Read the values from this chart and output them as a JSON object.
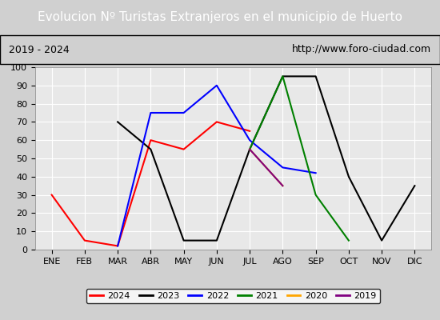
{
  "title": "Evolucion Nº Turistas Extranjeros en el municipio de Huerto",
  "subtitle_left": "2019 - 2024",
  "subtitle_right": "http://www.foro-ciudad.com",
  "title_bgcolor": "#4472c4",
  "title_color": "white",
  "months": [
    "ENE",
    "FEB",
    "MAR",
    "ABR",
    "MAY",
    "JUN",
    "JUL",
    "AGO",
    "SEP",
    "OCT",
    "NOV",
    "DIC"
  ],
  "ylim": [
    0,
    100
  ],
  "yticks": [
    0,
    10,
    20,
    30,
    40,
    50,
    60,
    70,
    80,
    90,
    100
  ],
  "series": {
    "2024": {
      "color": "red",
      "data": [
        30,
        5,
        2,
        60,
        55,
        70,
        65,
        null,
        null,
        null,
        null,
        null
      ]
    },
    "2023": {
      "color": "black",
      "data": [
        null,
        null,
        70,
        55,
        5,
        5,
        55,
        95,
        95,
        40,
        5,
        35
      ]
    },
    "2022": {
      "color": "blue",
      "data": [
        null,
        null,
        2,
        75,
        75,
        90,
        60,
        45,
        42,
        null,
        null,
        null
      ]
    },
    "2021": {
      "color": "green",
      "data": [
        null,
        null,
        null,
        null,
        null,
        null,
        55,
        95,
        30,
        5,
        null,
        null
      ]
    },
    "2020": {
      "color": "orange",
      "data": [
        null,
        null,
        null,
        null,
        null,
        null,
        55,
        35,
        null,
        null,
        null,
        null
      ]
    },
    "2019": {
      "color": "purple",
      "data": [
        null,
        null,
        null,
        null,
        null,
        null,
        55,
        35,
        null,
        null,
        null,
        null
      ]
    }
  },
  "legend_order": [
    "2024",
    "2023",
    "2022",
    "2021",
    "2020",
    "2019"
  ],
  "background_color": "#e8e8e8",
  "plot_bgcolor": "#e8e8e8",
  "grid_color": "white"
}
